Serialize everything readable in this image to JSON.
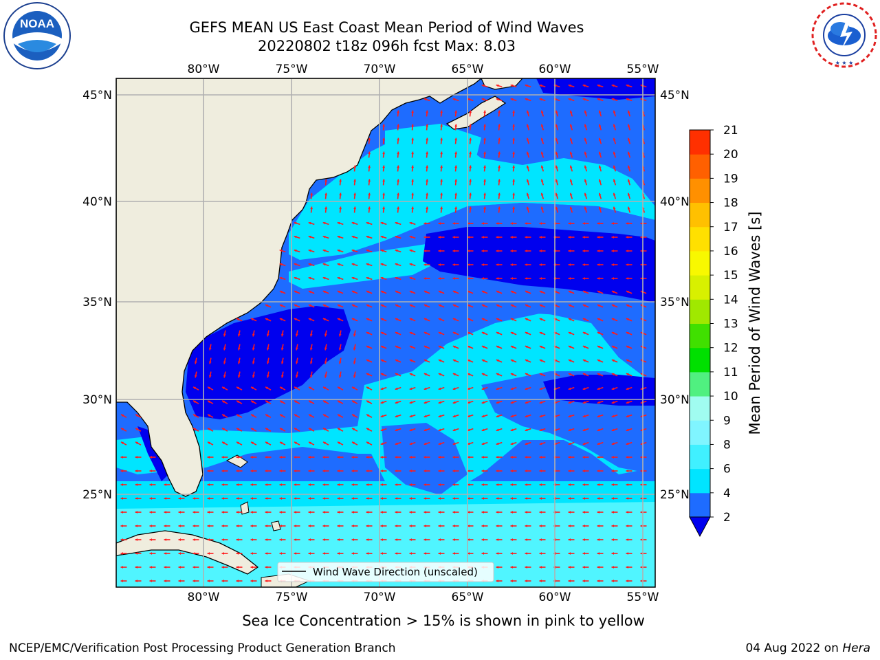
{
  "title": {
    "line1": "GEFS MEAN US East Coast Mean Period of Wind Waves",
    "line2": "20220802 t18z 096h fcst   Max: 8.03"
  },
  "logos": {
    "left": "NOAA",
    "left_ring_text": "NATIONAL OCEANIC AND ATMOSPHERIC ADMINISTRATION · U.S. DEPARTMENT OF COMMERCE",
    "right_ring_text": "NATIONAL WEATHER SERVICE"
  },
  "map": {
    "lon_ticks": [
      "80°W",
      "75°W",
      "70°W",
      "65°W",
      "60°W",
      "55°W"
    ],
    "lat_ticks": [
      "45°N",
      "40°N",
      "35°N",
      "30°N",
      "25°N"
    ],
    "legend_label": "Wind Wave Direction (unscaled)"
  },
  "colorbar": {
    "label": "Mean Period of Wind Waves [s]",
    "ticks": [
      "2",
      "4",
      "6",
      "8",
      "9",
      "10",
      "11",
      "12",
      "13",
      "14",
      "15",
      "16",
      "17",
      "18",
      "19",
      "20",
      "21"
    ],
    "colors": [
      "#1e6cff",
      "#00e5ff",
      "#40f0ff",
      "#80f5ff",
      "#a0fcf0",
      "#50f080",
      "#20d020",
      "#00e000",
      "#70e000",
      "#c0f000",
      "#e0f000",
      "#f8f800",
      "#ffe000",
      "#ffc000",
      "#ff9000",
      "#ff6000",
      "#ff3000",
      "#ff0000"
    ],
    "extend_color": "#0000ee"
  },
  "colors": {
    "land": "#efedde",
    "deep_blue": "#0000ee",
    "mid_blue": "#1e6cff",
    "cyan": "#00e5ff",
    "light_cyan": "#50f5ff",
    "arrow": "#ff1a1a"
  },
  "footer": {
    "note": "Sea Ice Concentration > 15% is shown in pink to yellow",
    "left": "NCEP/EMC/Verification Post Processing Product Generation Branch",
    "right_date": "04 Aug 2022 on ",
    "right_host": "Hera"
  }
}
